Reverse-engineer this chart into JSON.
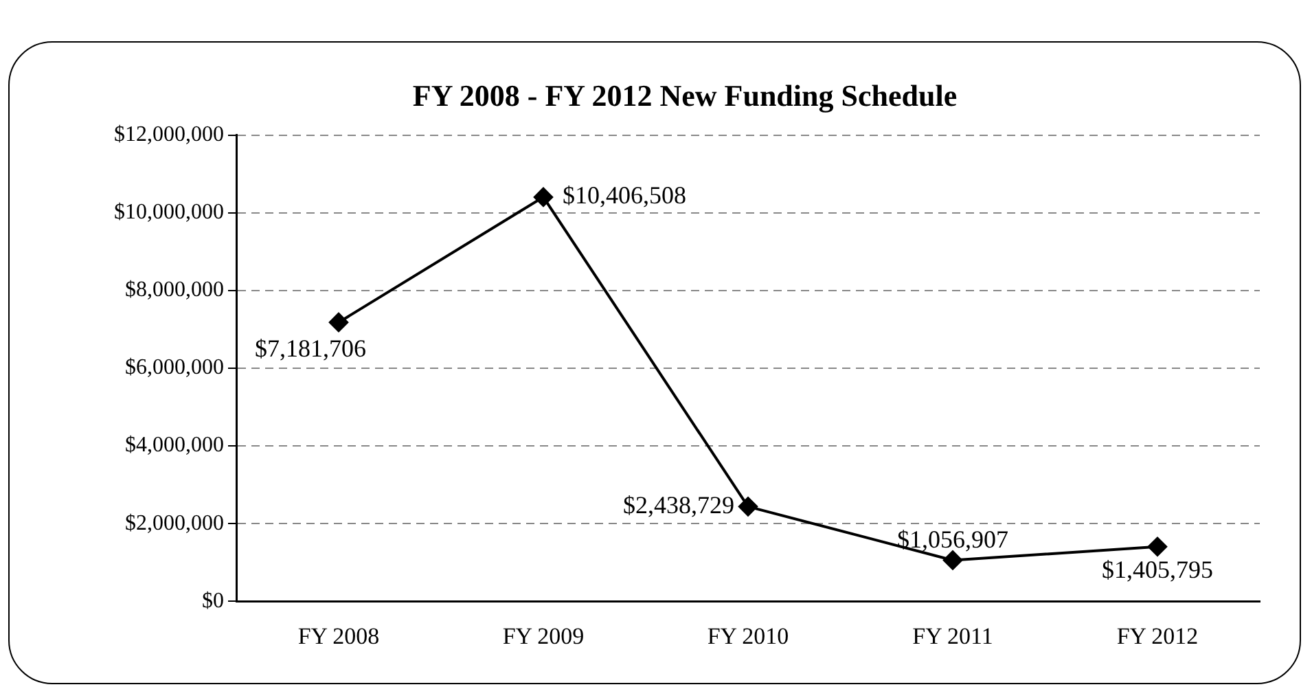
{
  "chart_data": {
    "type": "line",
    "title": "FY 2008 - FY 2012 New Funding Schedule",
    "categories": [
      "FY 2008",
      "FY 2009",
      "FY 2010",
      "FY 2011",
      "FY 2012"
    ],
    "series": [
      {
        "color": "#000000",
        "values": [
          7181706,
          10406508,
          2438729,
          1056907,
          1405795
        ],
        "value_labels": [
          "$7,181,706",
          "$10,406,508",
          "$2,438,729",
          "$1,056,907",
          "$1,405,795"
        ]
      }
    ],
    "ylim": [
      0,
      12000000
    ],
    "yticks": [
      {
        "value": 0,
        "label": "$0"
      },
      {
        "value": 2000000,
        "label": "$2,000,000"
      },
      {
        "value": 4000000,
        "label": "$4,000,000"
      },
      {
        "value": 6000000,
        "label": "$6,000,000"
      },
      {
        "value": 8000000,
        "label": "$8,000,000"
      },
      {
        "value": 10000000,
        "label": "$10,000,000"
      },
      {
        "value": 12000000,
        "label": "$12,000,000"
      }
    ],
    "grid": "y",
    "legend": false,
    "marker": "diamond",
    "line_style": "solid"
  }
}
